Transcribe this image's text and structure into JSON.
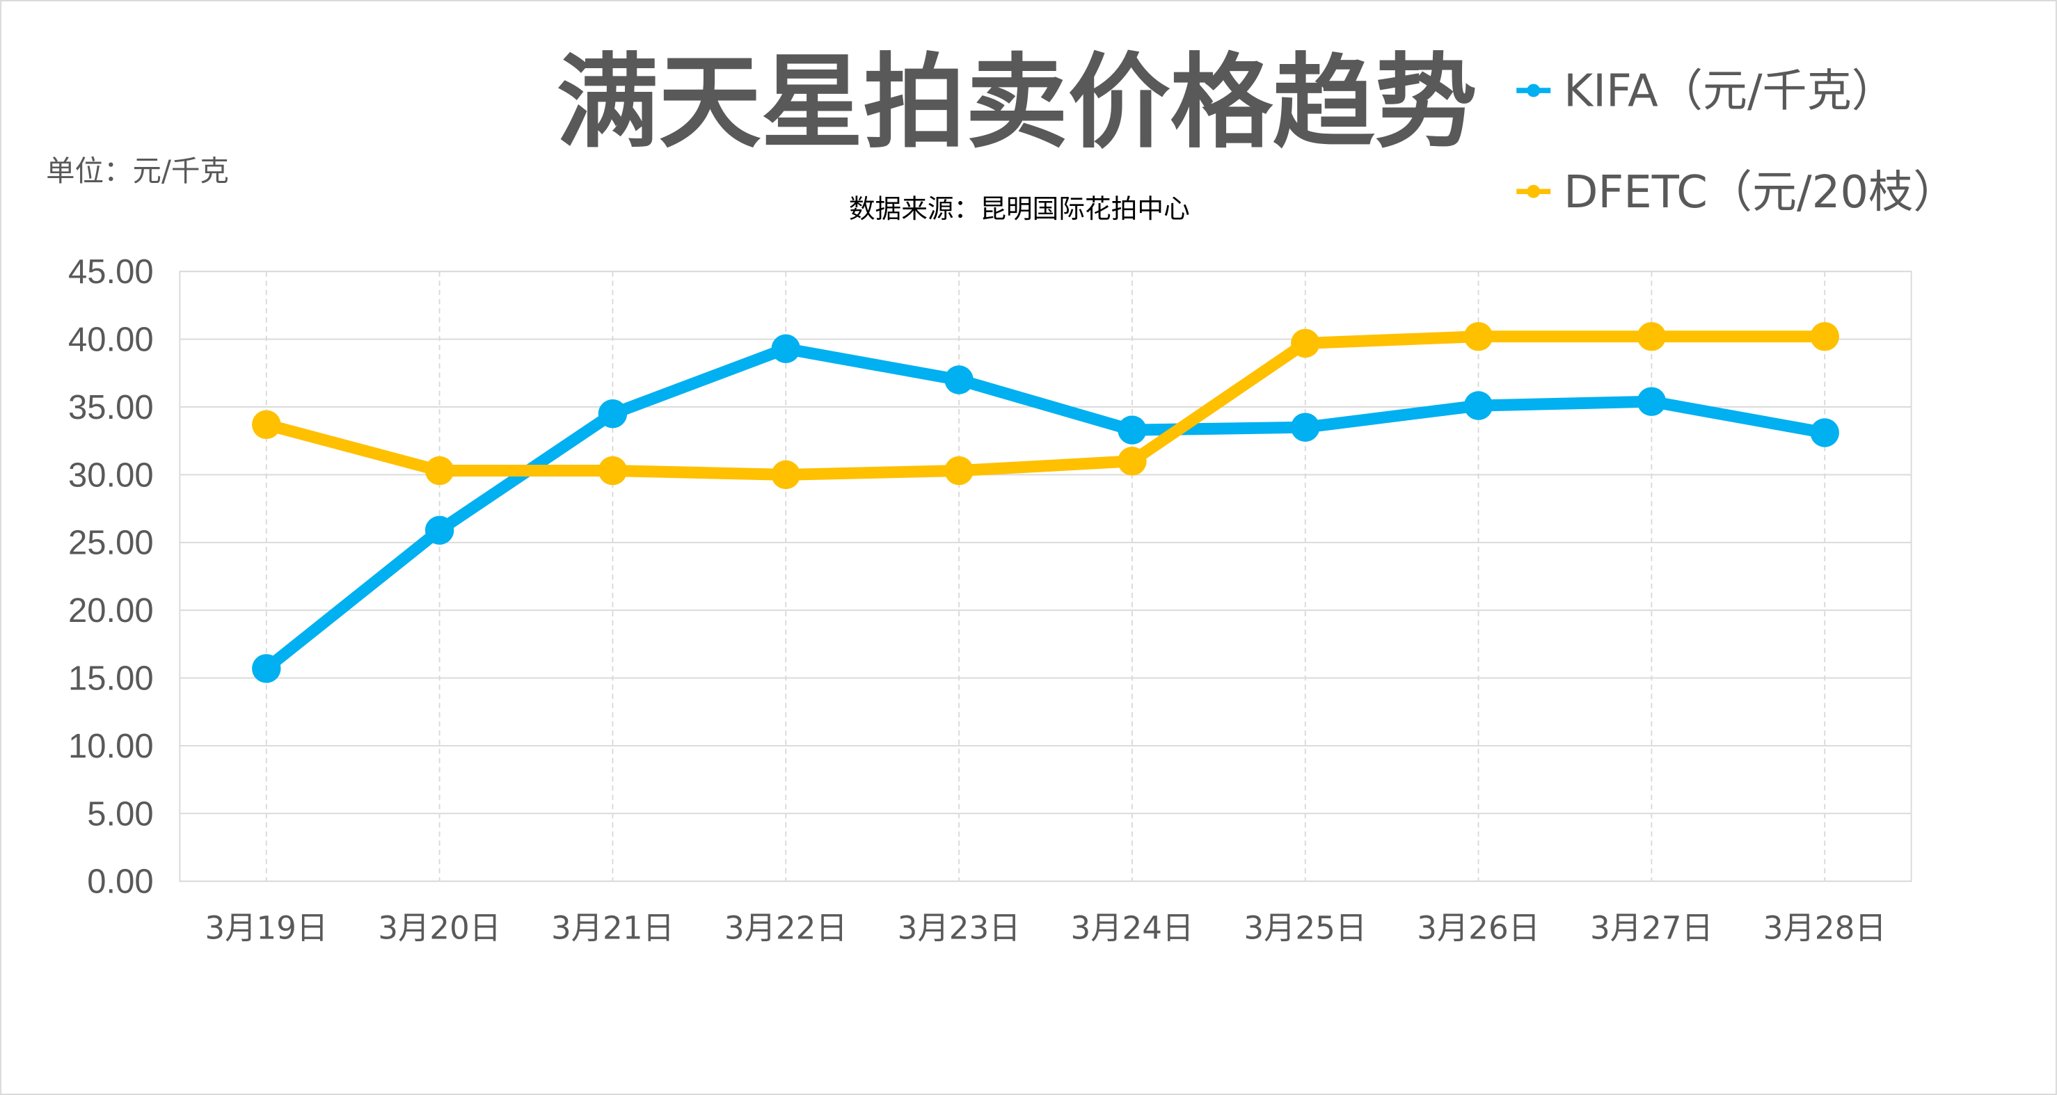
{
  "chart_data": {
    "type": "line",
    "title": "满天星拍卖价格趋势",
    "unit_label": "单位：元/千克",
    "subtitle": "数据来源：昆明国际花拍中心",
    "categories": [
      "3月19日",
      "3月20日",
      "3月21日",
      "3月22日",
      "3月23日",
      "3月24日",
      "3月25日",
      "3月26日",
      "3月27日",
      "3月28日"
    ],
    "series": [
      {
        "name": "KIFA（元/千克）",
        "color": "#00B0F0",
        "values": [
          15.7,
          25.9,
          34.5,
          39.3,
          37.0,
          33.3,
          33.5,
          35.1,
          35.4,
          33.1
        ]
      },
      {
        "name": "DFETC（元/20枝）",
        "color": "#FFC000",
        "values": [
          33.7,
          30.3,
          30.3,
          30.0,
          30.3,
          31.0,
          39.7,
          40.2,
          40.2,
          40.2
        ]
      }
    ],
    "y_ticks": [
      "0.00",
      "5.00",
      "10.00",
      "15.00",
      "20.00",
      "25.00",
      "30.00",
      "35.00",
      "40.00",
      "45.00"
    ],
    "ylim": [
      0,
      45
    ],
    "grid": true,
    "legend_position": "top-right"
  }
}
